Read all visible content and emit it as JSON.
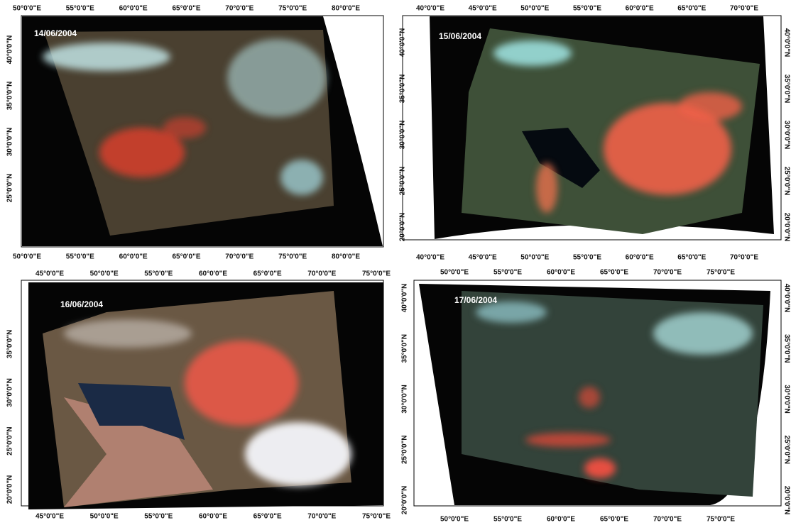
{
  "panels": [
    {
      "date": "14/06/2004",
      "top_ticks": [
        "50°0'0\"E",
        "55°0'0\"E",
        "60°0'0\"E",
        "65°0'0\"E",
        "70°0'0\"E",
        "75°0'0\"E",
        "80°0'0\"E"
      ],
      "bottom_ticks": [
        "50°0'0\"E",
        "55°0'0\"E",
        "60°0'0\"E",
        "65°0'0\"E",
        "70°0'0\"E",
        "75°0'0\"E",
        "80°0'0\"E"
      ],
      "left_ticks": [
        "40°0'0\"N",
        "35°0'0\"N",
        "30°0'0\"N",
        "25°0'0\"N"
      ]
    },
    {
      "date": "15/06/2004",
      "top_ticks": [
        "40°0'0\"E",
        "45°0'0\"E",
        "50°0'0\"E",
        "55°0'0\"E",
        "60°0'0\"E",
        "65°0'0\"E",
        "70°0'0\"E"
      ],
      "bottom_ticks": [
        "40°0'0\"E",
        "45°0'0\"E",
        "50°0'0\"E",
        "55°0'0\"E",
        "60°0'0\"E",
        "65°0'0\"E",
        "70°0'0\"E"
      ],
      "left_ticks": [
        "40°0'0\"N",
        "35°0'0\"N",
        "30°0'0\"N",
        "25°0'0\"N",
        "20°0'0\"N"
      ],
      "right_ticks": [
        "40°0'0\"N",
        "35°0'0\"N",
        "30°0'0\"N",
        "25°0'0\"N",
        "20°0'0\"N"
      ]
    },
    {
      "date": "16/06/2004",
      "top_ticks": [
        "45°0'0\"E",
        "50°0'0\"E",
        "55°0'0\"E",
        "60°0'0\"E",
        "65°0'0\"E",
        "70°0'0\"E",
        "75°0'0\"E"
      ],
      "bottom_ticks": [
        "45°0'0\"E",
        "50°0'0\"E",
        "55°0'0\"E",
        "60°0'0\"E",
        "65°0'0\"E",
        "70°0'0\"E",
        "75°0'0\"E"
      ],
      "left_ticks": [
        "35°0'0\"N",
        "30°0'0\"N",
        "25°0'0\"N",
        "20°0'0\"N"
      ]
    },
    {
      "date": "17/06/2004",
      "top_ticks": [
        "50°0'0\"E",
        "55°0'0\"E",
        "60°0'0\"E",
        "65°0'0\"E",
        "70°0'0\"E",
        "75°0'0\"E"
      ],
      "bottom_ticks": [
        "50°0'0\"E",
        "55°0'0\"E",
        "60°0'0\"E",
        "65°0'0\"E",
        "70°0'0\"E",
        "75°0'0\"E"
      ],
      "left_ticks": [
        "40°0'0\"N",
        "35°0'0\"N",
        "30°0'0\"N",
        "25°0'0\"N",
        "20°0'0\"N"
      ],
      "right_ticks": [
        "40°0'0\"N",
        "35°0'0\"N",
        "30°0'0\"N",
        "25°0'0\"N",
        "20°0'0\"N"
      ]
    }
  ]
}
